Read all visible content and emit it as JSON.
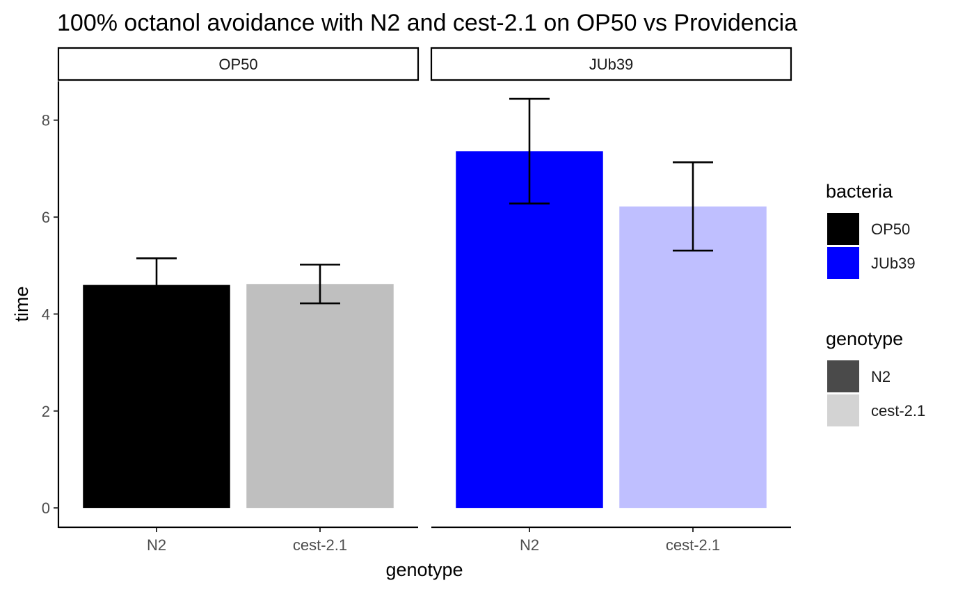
{
  "chart_data": {
    "type": "bar",
    "title": "100% octanol avoidance with N2 and cest-2.1 on OP50 vs Providencia",
    "xlabel": "genotype",
    "ylabel": "time",
    "ylim": [
      -0.4,
      8.8
    ],
    "yticks": [
      "0",
      "2",
      "4",
      "6",
      "8"
    ],
    "grid": false,
    "facets": [
      {
        "label": "OP50",
        "categories": [
          "N2",
          "cest-2.1"
        ],
        "values": [
          4.6,
          4.62
        ],
        "error_low": [
          4.05,
          4.22
        ],
        "error_high": [
          5.15,
          5.02
        ],
        "colors": [
          "#000000",
          "#bfbfbf"
        ]
      },
      {
        "label": "JUb39",
        "categories": [
          "N2",
          "cest-2.1"
        ],
        "values": [
          7.36,
          6.22
        ],
        "error_low": [
          6.28,
          5.31
        ],
        "error_high": [
          8.44,
          7.13
        ],
        "colors": [
          "#0000ff",
          "#bfbfff"
        ]
      }
    ],
    "legend_position": "right",
    "legends": [
      {
        "title": "bacteria",
        "items": [
          {
            "label": "OP50",
            "color": "#000000"
          },
          {
            "label": "JUb39",
            "color": "#0000ff"
          }
        ]
      },
      {
        "title": "genotype",
        "items": [
          {
            "label": "N2",
            "color": "#4a4a4a"
          },
          {
            "label": "cest-2.1",
            "color": "#d3d3d3"
          }
        ]
      }
    ]
  }
}
